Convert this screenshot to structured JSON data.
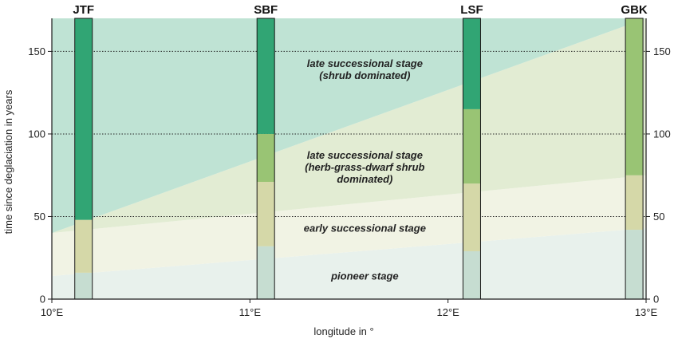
{
  "chart_data": {
    "type": "area",
    "xlabel": "longitude in °",
    "ylabel": "time since deglaciation in years",
    "xlim": [
      10,
      13
    ],
    "ylim": [
      0,
      170
    ],
    "x_ticks": [
      10,
      11,
      12,
      13
    ],
    "x_tick_labels": [
      "10°E",
      "11°E",
      "12°E",
      "13°E"
    ],
    "y_ticks": [
      0,
      50,
      100,
      150
    ],
    "y_tick_labels": [
      "0",
      "50",
      "100",
      "150"
    ],
    "gridlines_y": [
      50,
      100,
      150
    ],
    "stage_boundaries": [
      {
        "name": "pioneer / early",
        "x": [
          10,
          13
        ],
        "y": [
          14,
          43
        ]
      },
      {
        "name": "early / herb-grass-dwarf shrub",
        "x": [
          10,
          13
        ],
        "y": [
          40,
          75
        ]
      },
      {
        "name": "herb-grass-dwarf shrub / shrub",
        "x": [
          10,
          13
        ],
        "y": [
          40,
          170
        ]
      }
    ],
    "stage_regions": [
      {
        "id": "pioneer",
        "color": "#e8f1ec",
        "lower": "axis",
        "upper": 0
      },
      {
        "id": "early",
        "color": "#f1f3e4",
        "lower": 0,
        "upper": 1
      },
      {
        "id": "herb",
        "color": "#e2ecd3",
        "lower": 1,
        "upper": 2
      },
      {
        "id": "shrub",
        "color": "#bfe3d4",
        "lower": 2,
        "upper": "top"
      }
    ],
    "stage_labels": [
      {
        "lines": [
          "late successional stage",
          "(shrub dominated)"
        ],
        "x": 11.58,
        "y": 139
      },
      {
        "lines": [
          "late successional stage",
          "(herb-grass-dwarf shrub",
          "dominated)"
        ],
        "x": 11.58,
        "y": 80
      },
      {
        "lines": [
          "early successional stage"
        ],
        "x": 11.58,
        "y": 43
      },
      {
        "lines": [
          "pioneer stage"
        ],
        "x": 11.58,
        "y": 14
      }
    ],
    "sites": [
      {
        "name": "JTF",
        "x": 10.16,
        "segments": [
          {
            "from": 0,
            "to": 16,
            "stage": "pioneer"
          },
          {
            "from": 16,
            "to": 48,
            "stage": "early"
          },
          {
            "from": 48,
            "to": 170,
            "stage": "shrub"
          }
        ]
      },
      {
        "name": "SBF",
        "x": 11.08,
        "segments": [
          {
            "from": 0,
            "to": 32,
            "stage": "pioneer"
          },
          {
            "from": 32,
            "to": 71,
            "stage": "early"
          },
          {
            "from": 71,
            "to": 100,
            "stage": "herb"
          },
          {
            "from": 100,
            "to": 170,
            "stage": "shrub"
          }
        ]
      },
      {
        "name": "LSF",
        "x": 12.12,
        "segments": [
          {
            "from": 0,
            "to": 29,
            "stage": "pioneer"
          },
          {
            "from": 29,
            "to": 70,
            "stage": "early"
          },
          {
            "from": 70,
            "to": 115,
            "stage": "herb"
          },
          {
            "from": 115,
            "to": 170,
            "stage": "shrub"
          }
        ]
      },
      {
        "name": "GBK",
        "x": 12.94,
        "segments": [
          {
            "from": 0,
            "to": 42,
            "stage": "pioneer"
          },
          {
            "from": 42,
            "to": 75,
            "stage": "early"
          },
          {
            "from": 75,
            "to": 170,
            "stage": "herb"
          }
        ]
      }
    ],
    "bar_colors": {
      "pioneer": "#c6ddd1",
      "early": "#d5d8a8",
      "herb": "#99c474",
      "shrub": "#31a574"
    }
  }
}
